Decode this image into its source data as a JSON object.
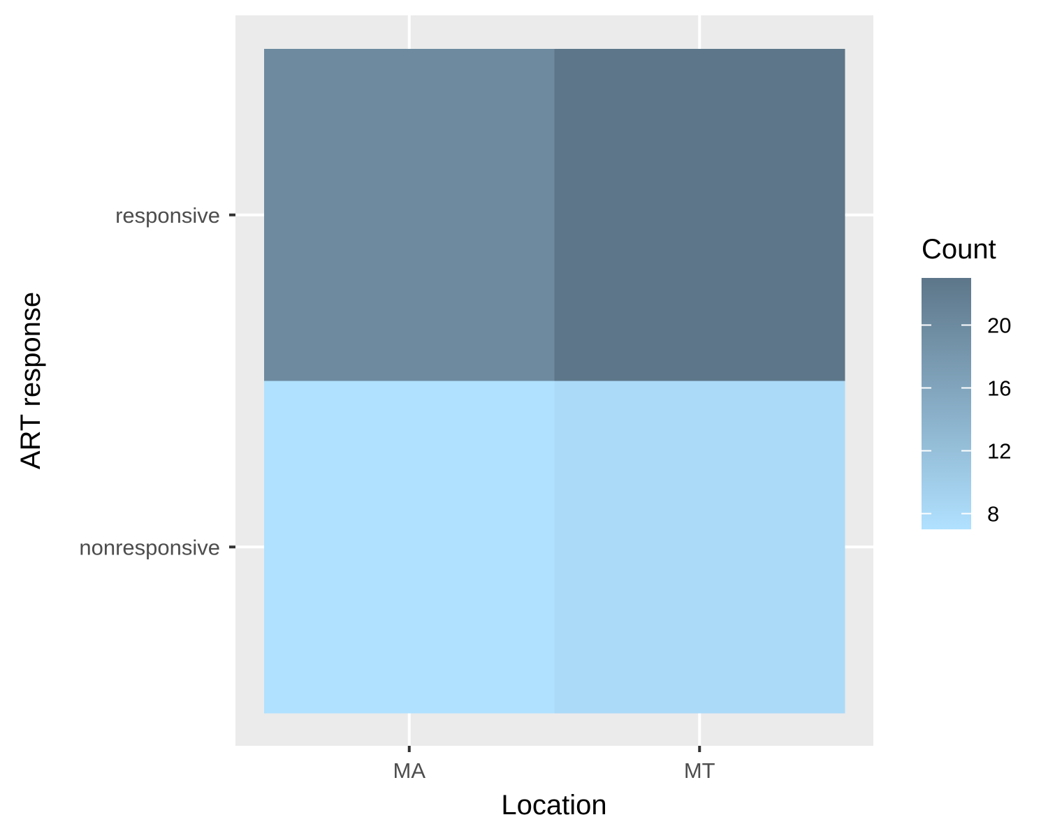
{
  "chart_data": {
    "type": "heatmap",
    "x_categories": [
      "MA",
      "MT"
    ],
    "y_categories": [
      "nonresponsive",
      "responsive"
    ],
    "cells": [
      {
        "x": "MA",
        "y": "responsive",
        "value": 20
      },
      {
        "x": "MT",
        "y": "responsive",
        "value": 23
      },
      {
        "x": "MA",
        "y": "nonresponsive",
        "value": 7
      },
      {
        "x": "MT",
        "y": "nonresponsive",
        "value": 8
      }
    ],
    "xlabel": "Location",
    "ylabel": "ART response",
    "legend": {
      "title": "Count",
      "range": [
        7,
        23
      ],
      "breaks": [
        8,
        12,
        16,
        20
      ],
      "low_color": "#b0e1ff",
      "high_color": "#5d7689",
      "position": "right"
    },
    "grid": true,
    "panel_background": "#ebebeb",
    "gridline_color": "#ffffff"
  }
}
